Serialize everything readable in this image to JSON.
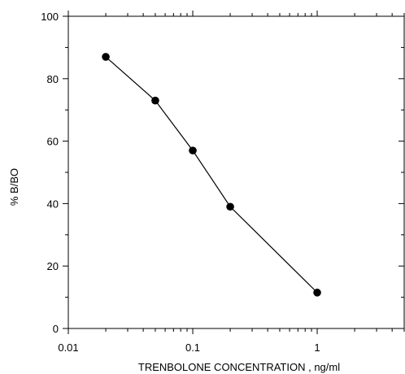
{
  "chart_data": {
    "type": "line",
    "xlabel": "TRENBOLONE CONCENTRATION , ng/ml",
    "ylabel": "% B/BO",
    "xscale": "log",
    "xlim": [
      0.01,
      5
    ],
    "ylim": [
      0,
      100
    ],
    "x_ticks": [
      {
        "value": 0.01,
        "label": "0.01"
      },
      {
        "value": 0.1,
        "label": "0.1"
      },
      {
        "value": 1,
        "label": "1"
      }
    ],
    "y_ticks": [
      {
        "value": 0,
        "label": "0"
      },
      {
        "value": 20,
        "label": "20"
      },
      {
        "value": 40,
        "label": "40"
      },
      {
        "value": 60,
        "label": "60"
      },
      {
        "value": 80,
        "label": "80"
      },
      {
        "value": 100,
        "label": "100"
      }
    ],
    "series": [
      {
        "x": [
          0.02,
          0.05,
          0.1,
          0.2,
          1
        ],
        "y": [
          87,
          73,
          57,
          39,
          11.5
        ]
      }
    ],
    "grid": false,
    "colors": {
      "line": "#000000",
      "marker": "#000000",
      "axis": "#000000"
    }
  }
}
